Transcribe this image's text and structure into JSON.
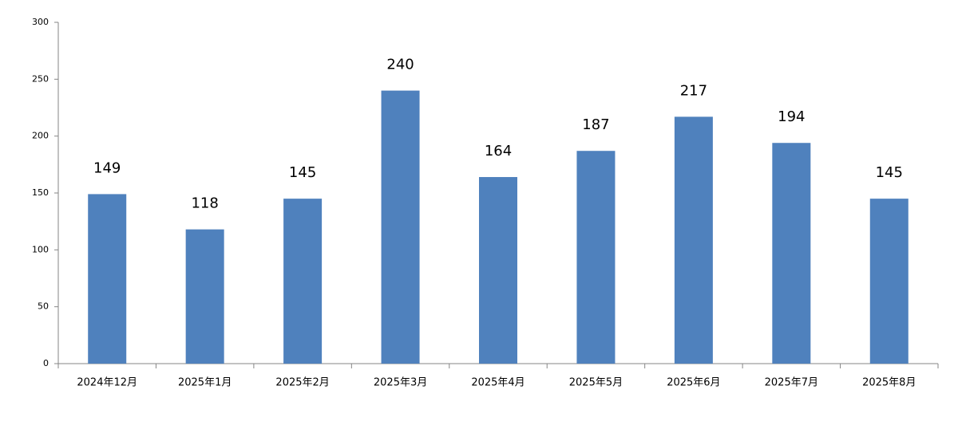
{
  "chart_data": {
    "type": "bar",
    "categories": [
      "2024年12月",
      "2025年1月",
      "2025年2月",
      "2025年3月",
      "2025年4月",
      "2025年5月",
      "2025年6月",
      "2025年7月",
      "2025年8月"
    ],
    "values": [
      149,
      118,
      145,
      240,
      164,
      187,
      217,
      194,
      145
    ],
    "color": "#4f81bd",
    "ylim": [
      0,
      300
    ],
    "yticks": [
      0,
      50,
      100,
      150,
      200,
      250,
      300
    ],
    "grid": false,
    "data_labels": true
  }
}
